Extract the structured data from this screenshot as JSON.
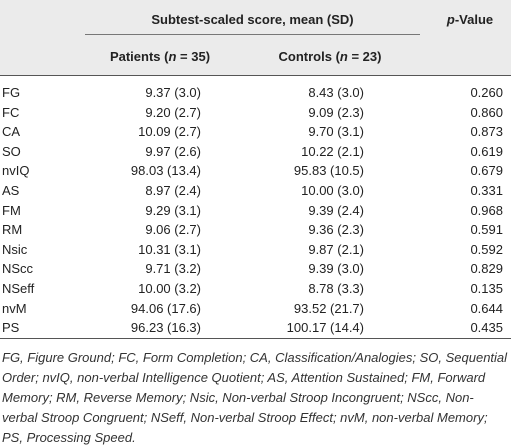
{
  "table": {
    "header": {
      "group": "Subtest-scaled score, mean (SD)",
      "patients": [
        "Patients (",
        "n",
        " = 35)"
      ],
      "controls": [
        "Controls (",
        "n",
        " = 23)"
      ],
      "pvalue": [
        "p",
        "-Value"
      ]
    },
    "rows": [
      [
        "FG",
        "9.37 (3.0)",
        "8.43 (3.0)",
        "0.260"
      ],
      [
        "FC",
        "9.20 (2.7)",
        "9.09 (2.3)",
        "0.860"
      ],
      [
        "CA",
        "10.09 (2.7)",
        "9.70 (3.1)",
        "0.873"
      ],
      [
        "SO",
        "9.97 (2.6)",
        "10.22 (2.1)",
        "0.619"
      ],
      [
        "nvIQ",
        "98.03 (13.4)",
        "95.83 (10.5)",
        "0.679"
      ],
      [
        "AS",
        "8.97 (2.4)",
        "10.00 (3.0)",
        "0.331"
      ],
      [
        "FM",
        "9.29 (3.1)",
        "9.39 (2.4)",
        "0.968"
      ],
      [
        "RM",
        "9.06 (2.7)",
        "9.36 (2.3)",
        "0.591"
      ],
      [
        "Nsic",
        "10.31 (3.1)",
        "9.87 (2.1)",
        "0.592"
      ],
      [
        "NScc",
        "9.71 (3.2)",
        "9.39 (3.0)",
        "0.829"
      ],
      [
        "NSeff",
        "10.00 (3.2)",
        "8.78 (3.3)",
        "0.135"
      ],
      [
        "nvM",
        "94.06 (17.6)",
        "93.52 (21.7)",
        "0.644"
      ],
      [
        "PS",
        "96.23 (16.3)",
        "100.17 (14.4)",
        "0.435"
      ]
    ]
  },
  "footnote": [
    "FG, Figure Ground; FC, Form Completion; CA, Classification/Analogies; SO, Sequential",
    "Order; nvIQ, non-verbal Intelligence Quotient; AS, Attention Sustained; FM, Forward",
    "Memory; RM, Reverse Memory; Nsic, Non-verbal Stroop Incongruent; NScc, Non-",
    "verbal Stroop Congruent; NSeff, Non-verbal Stroop Effect; nvM, non-verbal Memory;",
    "PS, Processing Speed."
  ]
}
